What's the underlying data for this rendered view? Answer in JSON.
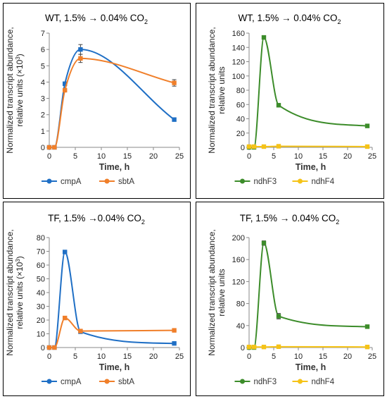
{
  "chart_data": [
    {
      "type": "line",
      "title": "WT, 1.5% → 0.04% CO",
      "title_sub": "2",
      "ylabel_lines": [
        "Normalized transcript abundance,",
        "relative units (×10",
        "3",
        ")"
      ],
      "xlabel": "Time, h",
      "xlim": [
        0,
        25
      ],
      "ylim": [
        0,
        7
      ],
      "xticks": [
        0,
        5,
        10,
        15,
        20,
        25
      ],
      "yticks": [
        0,
        1,
        2,
        3,
        4,
        5,
        6,
        7
      ],
      "grid": false,
      "legend_position": "bottom",
      "series": [
        {
          "name": "cmpA",
          "color": "#1f6fc5",
          "x": [
            0,
            1,
            3,
            6,
            24
          ],
          "y": [
            0,
            0,
            3.9,
            6.0,
            1.7
          ],
          "err": [
            0,
            0,
            0.05,
            0.3,
            0.08
          ]
        },
        {
          "name": "sbtA",
          "color": "#f07f2a",
          "x": [
            0,
            1,
            3,
            6,
            24
          ],
          "y": [
            0,
            0,
            3.5,
            5.45,
            3.95
          ],
          "err": [
            0,
            0,
            0.05,
            0.25,
            0.2
          ]
        }
      ]
    },
    {
      "type": "line",
      "title": "WT, 1.5% → 0.04% CO",
      "title_sub": "2",
      "ylabel_lines": [
        "Normalized transcript abundance,",
        "relative units"
      ],
      "xlabel": "Time, h",
      "xlim": [
        0,
        25
      ],
      "ylim": [
        0,
        160
      ],
      "xticks": [
        0,
        5,
        10,
        15,
        20,
        25
      ],
      "yticks": [
        0,
        20,
        40,
        60,
        80,
        100,
        120,
        140,
        160
      ],
      "grid": false,
      "legend_position": "bottom",
      "series": [
        {
          "name": "ndhF3",
          "color": "#3c8c2a",
          "x": [
            0,
            1,
            3,
            6,
            24
          ],
          "y": [
            0,
            0,
            154,
            59,
            30
          ],
          "err": [
            0,
            0,
            1,
            2,
            1
          ]
        },
        {
          "name": "ndhF4",
          "color": "#f5c318",
          "x": [
            0,
            1,
            3,
            6,
            24
          ],
          "y": [
            1,
            1,
            1,
            1.5,
            1
          ],
          "err": [
            0,
            0,
            0,
            0,
            0
          ]
        }
      ]
    },
    {
      "type": "line",
      "title": "TF, 1.5% →0.04% CO",
      "title_sub": "2",
      "ylabel_lines": [
        "Normalized transcript abundance,",
        "relative units (×10",
        "3",
        ")"
      ],
      "xlabel": "Time, h",
      "xlim": [
        0,
        25
      ],
      "ylim": [
        0,
        80
      ],
      "xticks": [
        0,
        5,
        10,
        15,
        20,
        25
      ],
      "yticks": [
        0,
        10,
        20,
        30,
        40,
        50,
        60,
        70,
        80
      ],
      "grid": false,
      "legend_position": "bottom",
      "series": [
        {
          "name": "cmpA",
          "color": "#1f6fc5",
          "x": [
            0,
            1,
            3,
            6,
            24
          ],
          "y": [
            0,
            0,
            69.5,
            11.5,
            3
          ],
          "err": [
            0,
            0,
            0.5,
            0.8,
            0.3
          ]
        },
        {
          "name": "sbtA",
          "color": "#f07f2a",
          "x": [
            0,
            1,
            3,
            6,
            24
          ],
          "y": [
            0,
            0,
            21.5,
            12,
            12.5
          ],
          "err": [
            0,
            0,
            0.5,
            0.8,
            0.3
          ]
        }
      ]
    },
    {
      "type": "line",
      "title": "TF, 1.5% → 0.04% CO",
      "title_sub": "2",
      "ylabel_lines": [
        "Normalized transcript abundance,",
        "relative units"
      ],
      "xlabel": "Time, h",
      "xlim": [
        0,
        25
      ],
      "ylim": [
        0,
        200
      ],
      "xticks": [
        0,
        5,
        10,
        15,
        20,
        25
      ],
      "yticks": [
        0,
        40,
        80,
        120,
        160,
        200
      ],
      "grid": false,
      "legend_position": "bottom",
      "series": [
        {
          "name": "ndhF3",
          "color": "#3c8c2a",
          "x": [
            0,
            1,
            3,
            6,
            24
          ],
          "y": [
            0,
            0,
            190,
            57,
            38
          ],
          "err": [
            0,
            0,
            4,
            5,
            1
          ]
        },
        {
          "name": "ndhF4",
          "color": "#f5c318",
          "x": [
            0,
            1,
            3,
            6,
            24
          ],
          "y": [
            1,
            1,
            1,
            1.5,
            1
          ],
          "err": [
            0,
            0,
            0,
            0,
            0
          ]
        }
      ]
    }
  ]
}
